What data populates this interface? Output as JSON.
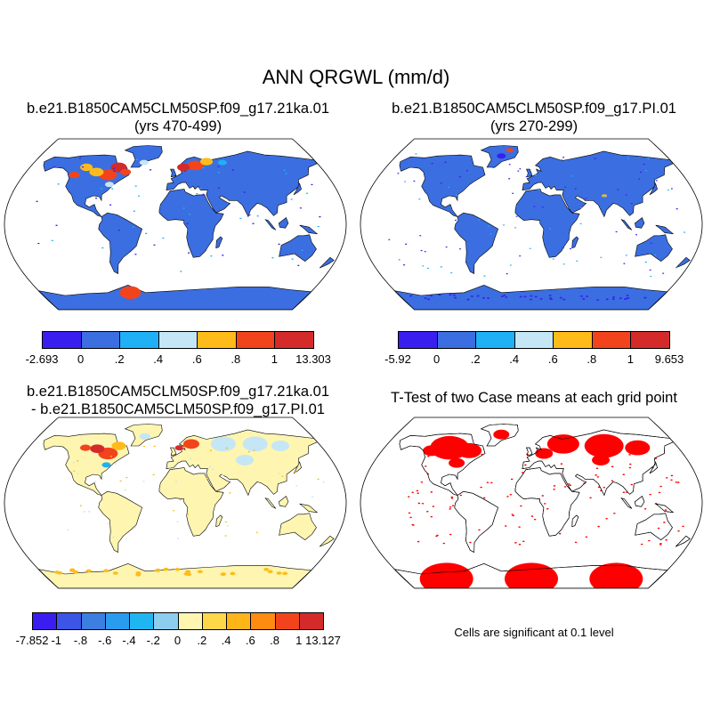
{
  "title": "ANN QRGWL (mm/d)",
  "panels": [
    {
      "title_line1": "b.e21.B1850CAM5CLM50SP.f09_g17.21ka.01",
      "title_line2": "(yrs 470-499)",
      "colorbar": {
        "colors": [
          "#3a1ef0",
          "#3b6ee0",
          "#1fb0f5",
          "#c5e6f5",
          "#ffbb1a",
          "#f2441c",
          "#d42a2a"
        ],
        "labels": [
          "-2.693",
          "0",
          ".2",
          ".4",
          ".6",
          ".8",
          "1",
          "13.303"
        ]
      }
    },
    {
      "title_line1": "b.e21.B1850CAM5CLM50SP.f09_g17.PI.01",
      "title_line2": "(yrs 270-299)",
      "colorbar": {
        "colors": [
          "#3a1ef0",
          "#3b6ee0",
          "#1fb0f5",
          "#c5e6f5",
          "#ffbb1a",
          "#f2441c",
          "#d42a2a"
        ],
        "labels": [
          "-5.92",
          "0",
          ".2",
          ".4",
          ".6",
          ".8",
          "1",
          "9.653"
        ]
      }
    },
    {
      "title_line1": "b.e21.B1850CAM5CLM50SP.f09_g17.21ka.01",
      "title_line2": "- b.e21.B1850CAM5CLM50SP.f09_g17.PI.01",
      "colorbar": {
        "colors": [
          "#3a1ef0",
          "#3c55e6",
          "#3b7fe0",
          "#2a9cf0",
          "#1fb5f0",
          "#8ccdf0",
          "#fdf5b0",
          "#ffd84a",
          "#ffb41a",
          "#ff8c10",
          "#f2441c",
          "#d42a2a"
        ],
        "labels": [
          "-7.852",
          "-1",
          "-.8",
          "-.6",
          "-.4",
          "-.2",
          "0",
          ".2",
          ".4",
          ".6",
          ".8",
          "1",
          "13.127"
        ]
      }
    },
    {
      "title_line1": "T-Test of two Case means at each grid point",
      "note": "Cells are significant at 0.1 level"
    }
  ],
  "map_colors": {
    "panel1_land": "#3b6ee0",
    "panel2_land": "#3b6ee0",
    "panel3_land": "#fdf5b0",
    "panel4_sig": "#ff0000",
    "warm_high": "#d42a2a",
    "warm_mid": "#f2441c",
    "warm_low": "#ffbb1a",
    "cool_light": "#c5e6f5",
    "cool_mid": "#1fb0f5",
    "cool_deep": "#3a1ef0"
  }
}
